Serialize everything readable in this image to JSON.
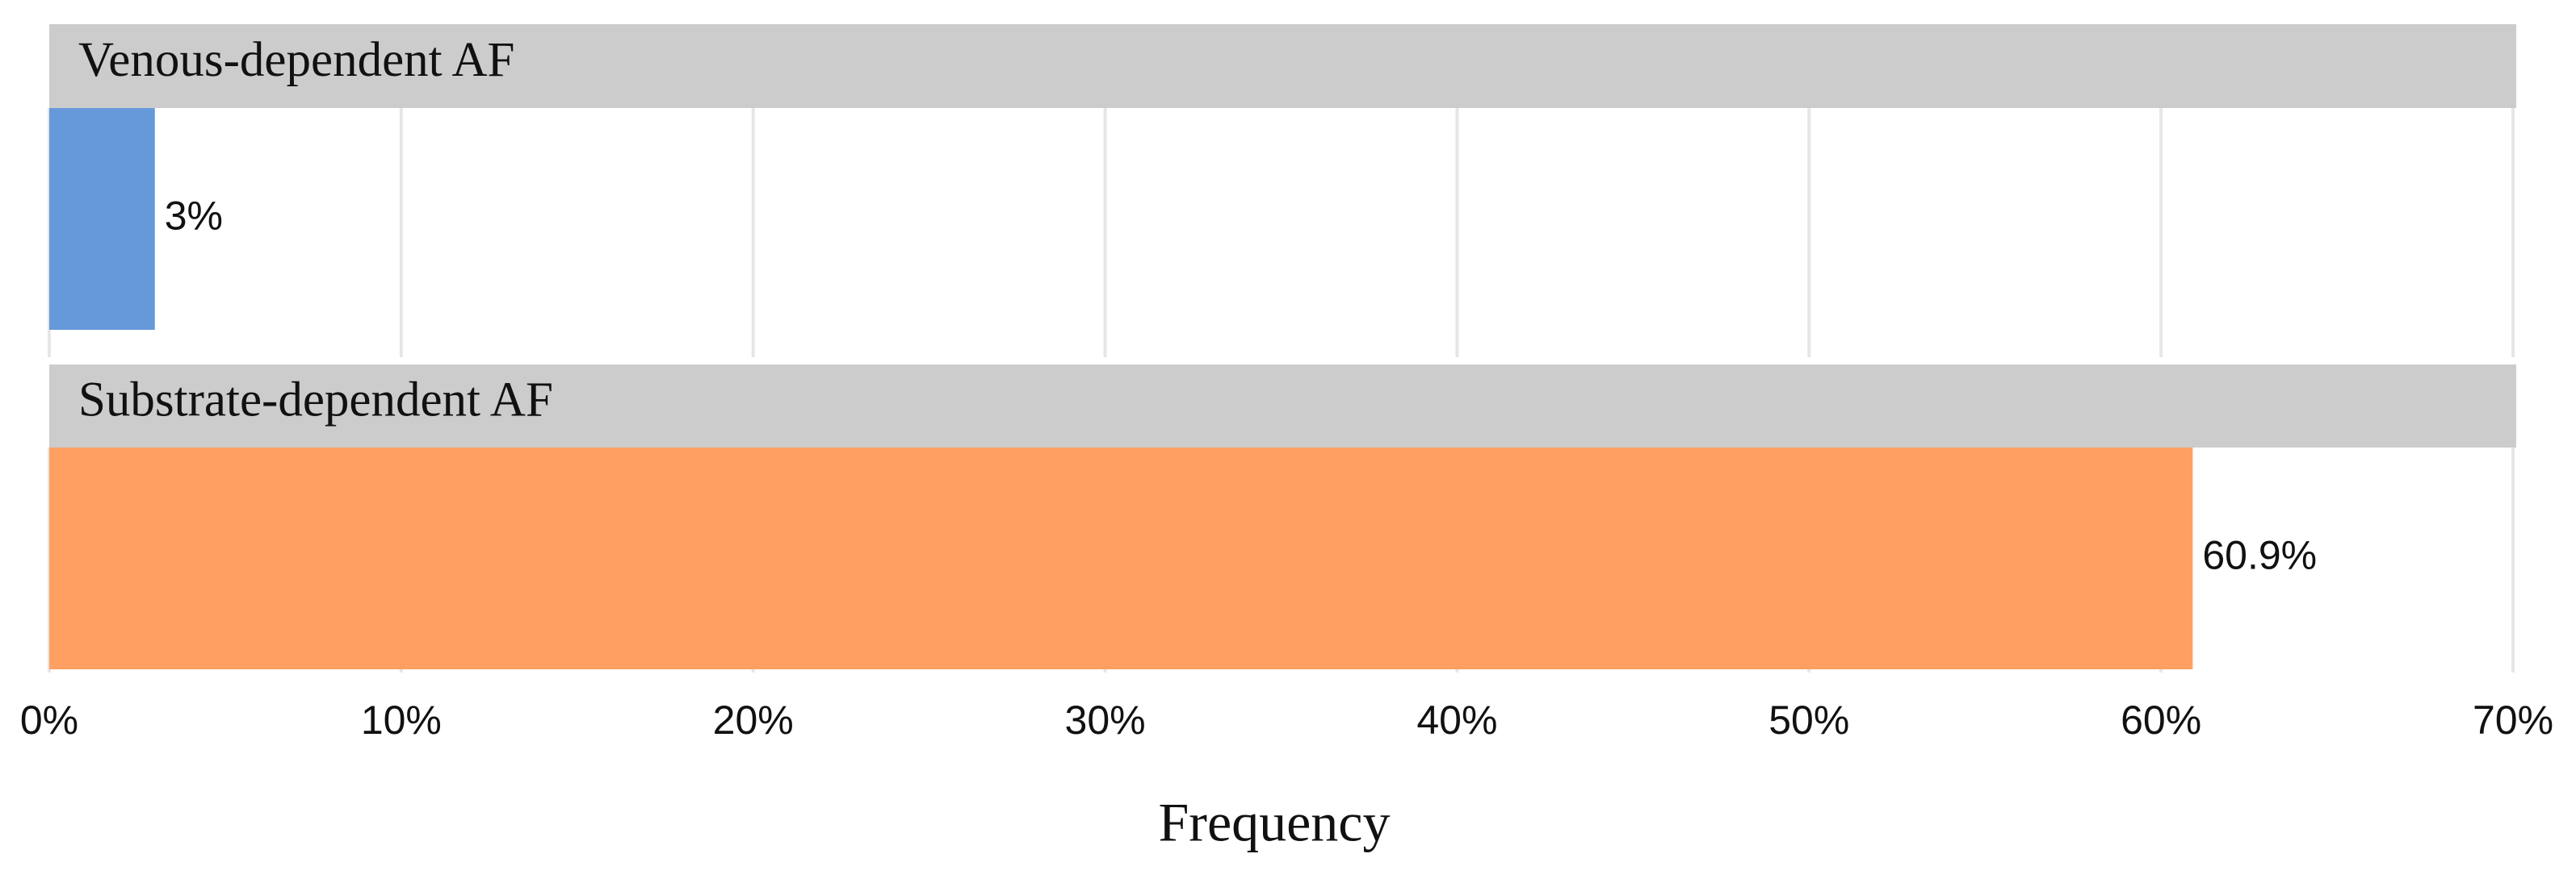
{
  "chart_data": {
    "type": "bar",
    "orientation": "horizontal",
    "facet": true,
    "categories": [
      "Venous-dependent AF",
      "Substrate-dependent AF"
    ],
    "values": [
      3,
      60.9
    ],
    "value_labels": [
      "3%",
      "60.9%"
    ],
    "colors": [
      "#6699d9",
      "#ffa062"
    ],
    "x_label": "Frequency",
    "xlim": [
      0,
      70
    ],
    "xticks": [
      {
        "value": 0,
        "label": "0%"
      },
      {
        "value": 10,
        "label": "10%"
      },
      {
        "value": 20,
        "label": "20%"
      },
      {
        "value": 30,
        "label": "30%"
      },
      {
        "value": 40,
        "label": "40%"
      },
      {
        "value": 50,
        "label": "50%"
      },
      {
        "value": 60,
        "label": "60%"
      },
      {
        "value": 70,
        "label": "70%"
      }
    ],
    "grid": true
  }
}
